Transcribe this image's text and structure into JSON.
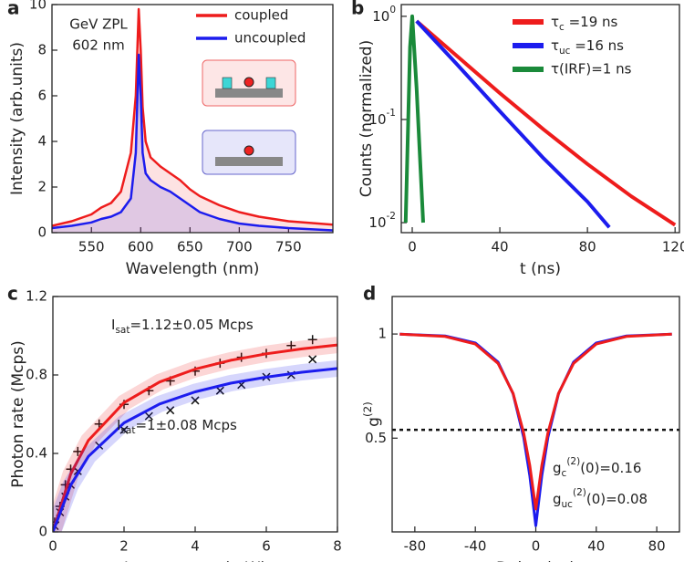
{
  "chart_data": [
    {
      "type": "line",
      "panel": "a",
      "xlabel": "Wavelength (nm)",
      "ylabel": "Intensity (arb.units)",
      "annotations": [
        "GeV ZPL",
        "602 nm"
      ],
      "fill": true,
      "x": [
        510,
        530,
        550,
        560,
        570,
        580,
        590,
        595,
        598,
        600,
        602,
        605,
        610,
        620,
        630,
        640,
        650,
        660,
        680,
        700,
        720,
        750,
        795
      ],
      "xlim": [
        510,
        795
      ],
      "xticks": [
        550,
        600,
        650,
        700,
        750
      ],
      "ylim": [
        0,
        10
      ],
      "yticks": [
        0,
        2,
        4,
        6,
        8,
        10
      ],
      "series": [
        {
          "name": "coupled",
          "color": "#ee1c1c",
          "values": [
            0.3,
            0.5,
            0.8,
            1.1,
            1.3,
            1.8,
            3.5,
            6,
            9.8,
            8,
            5.5,
            4,
            3.3,
            2.9,
            2.6,
            2.3,
            1.9,
            1.6,
            1.2,
            0.9,
            0.7,
            0.5,
            0.35
          ]
        },
        {
          "name": "uncoupled",
          "color": "#1c1cee",
          "values": [
            0.2,
            0.3,
            0.45,
            0.6,
            0.7,
            0.9,
            1.5,
            3.5,
            7.8,
            6,
            3.5,
            2.6,
            2.3,
            2.0,
            1.8,
            1.5,
            1.2,
            0.9,
            0.6,
            0.4,
            0.3,
            0.2,
            0.1
          ]
        }
      ]
    },
    {
      "type": "line",
      "panel": "b",
      "xlabel": "t (ns)",
      "ylabel": "Counts (normalized)",
      "yscale": "log",
      "xlim": [
        -5,
        122
      ],
      "xticks": [
        0,
        40,
        80,
        120
      ],
      "ylim": [
        0.008,
        1.3
      ],
      "yticks": [
        {
          "value": 0.01,
          "label": [
            {
              "t": "10"
            },
            {
              "t": "-2",
              "s": "sup"
            }
          ]
        },
        {
          "value": 0.1,
          "label": [
            {
              "t": "10"
            },
            {
              "t": "-1",
              "s": "sup"
            }
          ]
        },
        {
          "value": 1,
          "label": [
            {
              "t": "10"
            },
            {
              "t": "0",
              "s": "sup"
            }
          ]
        }
      ],
      "series": [
        {
          "name": [
            {
              "t": "τ"
            },
            {
              "t": "c",
              "s": "sub"
            },
            {
              "t": "  =19 ns"
            }
          ],
          "color": "#ee1c1c",
          "x": [
            2,
            20,
            40,
            60,
            80,
            100,
            120
          ],
          "values": [
            0.9,
            0.42,
            0.18,
            0.08,
            0.037,
            0.018,
            0.0095
          ]
        },
        {
          "name": [
            {
              "t": "τ"
            },
            {
              "t": "uc",
              "s": "sub"
            },
            {
              "t": " =16 ns"
            }
          ],
          "color": "#1c1cee",
          "x": [
            2,
            20,
            40,
            60,
            80,
            90
          ],
          "values": [
            0.9,
            0.35,
            0.12,
            0.042,
            0.016,
            0.009
          ]
        },
        {
          "name": "τ(IRF)=1 ns",
          "color": "#1a8a3a",
          "x": [
            -3,
            -1,
            0,
            2,
            5
          ],
          "values": [
            0.01,
            0.5,
            1,
            0.2,
            0.01
          ]
        }
      ]
    },
    {
      "type": "scatter",
      "panel": "c",
      "xlabel": "Laser power (mW)",
      "ylabel": "Photon rate (Mcps)",
      "annotations": [
        [
          {
            "t": "I"
          },
          {
            "t": "sat",
            "s": "sub"
          },
          {
            "t": "=1.12±0.05 Mcps"
          }
        ],
        [
          {
            "t": "I"
          },
          {
            "t": "sat",
            "s": "sub"
          },
          {
            "t": "=1±0.08 Mcps"
          }
        ]
      ],
      "xlim": [
        0,
        8
      ],
      "xticks": [
        0,
        2,
        4,
        6,
        8
      ],
      "ylim": [
        0,
        1.2
      ],
      "yticks": [
        0,
        0.4,
        0.8,
        1.2
      ],
      "series": [
        {
          "marker": "+",
          "color": "#111111",
          "x": [
            0.05,
            0.2,
            0.35,
            0.5,
            0.7,
            1.3,
            2,
            2.7,
            3.3,
            4,
            4.7,
            5.3,
            6,
            6.7,
            7.3
          ],
          "values": [
            0.05,
            0.13,
            0.24,
            0.32,
            0.41,
            0.55,
            0.65,
            0.72,
            0.77,
            0.82,
            0.86,
            0.89,
            0.91,
            0.95,
            0.98
          ]
        },
        {
          "marker": "x",
          "color": "#111111",
          "x": [
            0.05,
            0.2,
            0.35,
            0.5,
            0.7,
            1.3,
            2,
            2.7,
            3.3,
            4,
            4.7,
            5.3,
            6,
            6.7,
            7.3
          ],
          "values": [
            0.03,
            0.1,
            0.18,
            0.24,
            0.31,
            0.44,
            0.52,
            0.59,
            0.62,
            0.67,
            0.72,
            0.75,
            0.79,
            0.8,
            0.88
          ]
        },
        {
          "color": "#ee1c1c",
          "x": [
            0,
            0.5,
            1,
            2,
            3,
            4,
            5,
            6,
            7,
            8
          ],
          "values": [
            0,
            0.295,
            0.467,
            0.659,
            0.764,
            0.83,
            0.875,
            0.908,
            0.933,
            0.953
          ]
        },
        {
          "color": "#1c1cee",
          "x": [
            0,
            0.5,
            1,
            2,
            3,
            4,
            5,
            6,
            7,
            8
          ],
          "values": [
            0,
            0.238,
            0.385,
            0.556,
            0.652,
            0.714,
            0.758,
            0.789,
            0.814,
            0.833
          ]
        }
      ]
    },
    {
      "type": "line",
      "panel": "d",
      "xlabel": "Delay (ns)",
      "ylabel": [
        {
          "t": "g"
        },
        {
          "t": "(2)",
          "s": "sup"
        }
      ],
      "hline": 0.54,
      "annotations": [
        [
          {
            "t": "g"
          },
          {
            "t": "c",
            "s": "sub"
          },
          {
            "t": "(2)",
            "s": "sup"
          },
          {
            "t": "(0)=0.16"
          }
        ],
        [
          {
            "t": "g"
          },
          {
            "t": "uc",
            "s": "sub"
          },
          {
            "t": "(2)",
            "s": "sup"
          },
          {
            "t": "(0)=0.08"
          }
        ]
      ],
      "x": [
        -90,
        -60,
        -40,
        -25,
        -15,
        -8,
        -4,
        0,
        4,
        8,
        15,
        25,
        40,
        60,
        90
      ],
      "xlim": [
        -95,
        95
      ],
      "xticks": [
        -80,
        -40,
        0,
        40,
        80
      ],
      "ylim": [
        0.05,
        1.18
      ],
      "yticks": [
        0.5,
        1
      ],
      "series": [
        {
          "color": "#1c1cee",
          "values": [
            0.999,
            0.991,
            0.957,
            0.865,
            0.713,
            0.504,
            0.32,
            0.08,
            0.32,
            0.504,
            0.713,
            0.865,
            0.957,
            0.991,
            0.999
          ]
        },
        {
          "color": "#ee1c1c",
          "values": [
            0.999,
            0.988,
            0.952,
            0.859,
            0.715,
            0.525,
            0.369,
            0.16,
            0.369,
            0.525,
            0.715,
            0.859,
            0.952,
            0.988,
            0.999
          ]
        }
      ]
    }
  ]
}
